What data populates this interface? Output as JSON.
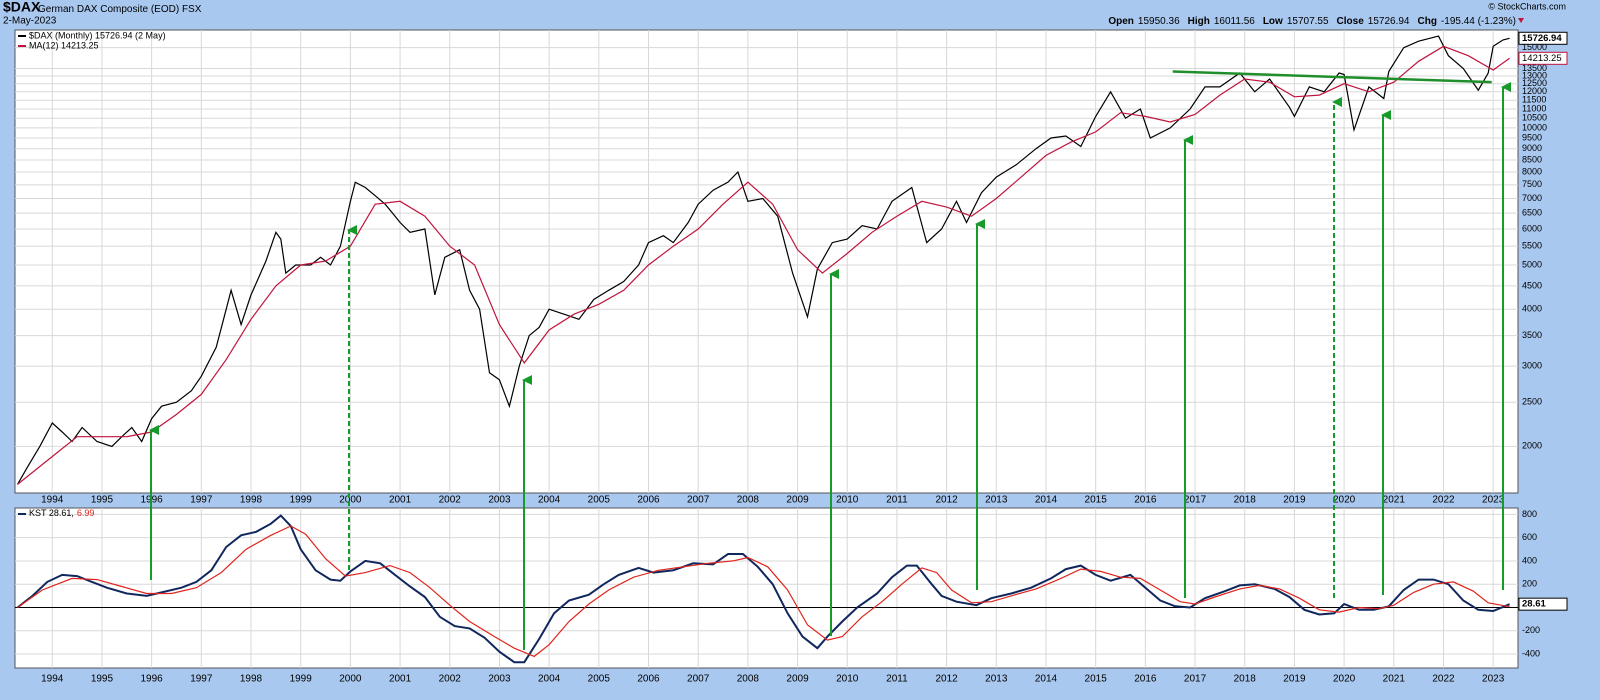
{
  "chart_data": [
    {
      "type": "line",
      "title": "$DAX",
      "subtitle": "German DAX Composite (EOD)",
      "exchange": "FSX",
      "date": "2-May-2023",
      "credit": "© StockCharts.com",
      "quote": [
        {
          "label": "Open",
          "value": 15950.36
        },
        {
          "label": "High",
          "value": 16011.56
        },
        {
          "label": "Low",
          "value": 15707.55
        },
        {
          "label": "Close",
          "value": 15726.94
        },
        {
          "label": "Chg",
          "value": "-195.44 (-1.23%)"
        }
      ],
      "log_scale": true,
      "grid": true,
      "xlim": [
        1993.25,
        2023.5
      ],
      "xticks": [
        1994,
        1995,
        1996,
        1997,
        1998,
        1999,
        2000,
        2001,
        2002,
        2003,
        2004,
        2005,
        2006,
        2007,
        2008,
        2009,
        2010,
        2011,
        2012,
        2013,
        2014,
        2015,
        2016,
        2017,
        2018,
        2019,
        2020,
        2021,
        2022,
        2023
      ],
      "ylim": [
        1580,
        16400
      ],
      "yticks": [
        2000,
        2500,
        3000,
        3500,
        4000,
        4500,
        5000,
        5500,
        6000,
        6500,
        7000,
        7500,
        8000,
        8500,
        9000,
        9500,
        10000,
        10500,
        11000,
        11500,
        12000,
        12500,
        13000,
        13500,
        15000
      ],
      "series": [
        {
          "name": "$DAX (Monthly) 15726.94 (2 May)",
          "color": "#000000",
          "x": [
            1993.3,
            1993.5,
            1993.75,
            1994.0,
            1994.2,
            1994.4,
            1994.6,
            1994.9,
            1995.2,
            1995.4,
            1995.6,
            1995.8,
            1996.0,
            1996.2,
            1996.5,
            1996.8,
            1997.0,
            1997.3,
            1997.5,
            1997.6,
            1997.8,
            1998.0,
            1998.3,
            1998.5,
            1998.6,
            1998.7,
            1998.9,
            1999.0,
            1999.2,
            1999.4,
            1999.6,
            1999.8,
            2000.0,
            2000.1,
            2000.3,
            2000.5,
            2000.7,
            2000.9,
            2001.0,
            2001.2,
            2001.5,
            2001.7,
            2001.9,
            2002.2,
            2002.4,
            2002.6,
            2002.8,
            2003.0,
            2003.2,
            2003.4,
            2003.6,
            2003.8,
            2004.0,
            2004.3,
            2004.6,
            2004.9,
            2005.2,
            2005.5,
            2005.8,
            2006.0,
            2006.3,
            2006.5,
            2006.8,
            2007.0,
            2007.3,
            2007.6,
            2007.8,
            2008.0,
            2008.3,
            2008.6,
            2008.9,
            2009.2,
            2009.4,
            2009.7,
            2010.0,
            2010.3,
            2010.6,
            2010.9,
            2011.3,
            2011.6,
            2011.9,
            2012.2,
            2012.4,
            2012.7,
            2013.0,
            2013.4,
            2013.8,
            2014.1,
            2014.4,
            2014.7,
            2015.0,
            2015.3,
            2015.6,
            2015.9,
            2016.1,
            2016.5,
            2016.9,
            2017.2,
            2017.5,
            2017.9,
            2018.2,
            2018.5,
            2018.9,
            2019.0,
            2019.3,
            2019.6,
            2019.9,
            2020.0,
            2020.2,
            2020.5,
            2020.8,
            2020.9,
            2021.2,
            2021.5,
            2021.9,
            2022.1,
            2022.4,
            2022.7,
            2022.9,
            2023.0,
            2023.2,
            2023.33
          ],
          "values": [
            1650,
            1800,
            2000,
            2250,
            2150,
            2050,
            2200,
            2050,
            2000,
            2100,
            2200,
            2050,
            2300,
            2450,
            2500,
            2650,
            2850,
            3300,
            4000,
            4400,
            3700,
            4300,
            5100,
            5900,
            5700,
            4800,
            5000,
            5000,
            5000,
            5200,
            5000,
            5500,
            6900,
            7600,
            7400,
            7100,
            6800,
            6400,
            6200,
            5900,
            6000,
            4300,
            5200,
            5400,
            4400,
            4000,
            2900,
            2800,
            2450,
            3000,
            3500,
            3650,
            4000,
            3900,
            3800,
            4200,
            4400,
            4600,
            5000,
            5600,
            5800,
            5600,
            6200,
            6800,
            7300,
            7600,
            8000,
            6900,
            7000,
            6400,
            4800,
            3850,
            4900,
            5600,
            5700,
            6100,
            6000,
            6900,
            7400,
            5600,
            6000,
            6900,
            6200,
            7200,
            7800,
            8300,
            9000,
            9500,
            9600,
            9100,
            10600,
            12000,
            10500,
            11000,
            9500,
            10000,
            11000,
            12300,
            12300,
            13200,
            12000,
            12800,
            11100,
            10600,
            12300,
            12000,
            13200,
            13100,
            9900,
            12300,
            11600,
            13300,
            15000,
            15500,
            15900,
            14400,
            13500,
            12100,
            13200,
            15100,
            15600,
            15726.94
          ]
        },
        {
          "name": "MA(12) 14213.25",
          "color": "#c0143c",
          "x": [
            1993.3,
            1994.0,
            1994.5,
            1995.0,
            1995.5,
            1996.0,
            1996.5,
            1997.0,
            1997.5,
            1998.0,
            1998.5,
            1999.0,
            1999.5,
            2000.0,
            2000.5,
            2001.0,
            2001.5,
            2002.0,
            2002.5,
            2003.0,
            2003.5,
            2004.0,
            2004.5,
            2005.0,
            2005.5,
            2006.0,
            2006.5,
            2007.0,
            2007.5,
            2008.0,
            2008.5,
            2009.0,
            2009.5,
            2010.0,
            2010.5,
            2011.0,
            2011.5,
            2012.0,
            2012.5,
            2013.0,
            2013.5,
            2014.0,
            2014.5,
            2015.0,
            2015.5,
            2016.0,
            2016.5,
            2017.0,
            2017.5,
            2018.0,
            2018.5,
            2019.0,
            2019.5,
            2020.0,
            2020.5,
            2021.0,
            2021.5,
            2022.0,
            2022.5,
            2023.0,
            2023.33
          ],
          "values": [
            1650,
            1900,
            2100,
            2100,
            2100,
            2150,
            2350,
            2600,
            3100,
            3800,
            4500,
            5000,
            5100,
            5500,
            6800,
            6900,
            6400,
            5500,
            5000,
            3700,
            3050,
            3600,
            3900,
            4100,
            4400,
            5000,
            5500,
            6000,
            6800,
            7600,
            6800,
            5400,
            4800,
            5300,
            5900,
            6400,
            6900,
            6700,
            6400,
            7000,
            7800,
            8700,
            9300,
            9800,
            10800,
            10600,
            10300,
            10700,
            11800,
            12800,
            12600,
            11700,
            11800,
            12500,
            12000,
            12600,
            14000,
            15100,
            14400,
            13400,
            14213.25
          ]
        }
      ],
      "trendline": {
        "color": "#1f8f2c",
        "x": [
          2016.55,
          2022.97
        ],
        "values": [
          13300,
          12600
        ]
      }
    },
    {
      "type": "line",
      "grid": true,
      "zero_line": true,
      "xlim": [
        1993.25,
        2023.5
      ],
      "xticks": [
        1994,
        1995,
        1996,
        1997,
        1998,
        1999,
        2000,
        2001,
        2002,
        2003,
        2004,
        2005,
        2006,
        2007,
        2008,
        2009,
        2010,
        2011,
        2012,
        2013,
        2014,
        2015,
        2016,
        2017,
        2018,
        2019,
        2020,
        2021,
        2022,
        2023
      ],
      "ylim": [
        -520,
        855
      ],
      "yticks": [
        -400,
        -200,
        200,
        400,
        600,
        800
      ],
      "series": [
        {
          "name": "KST 28.61,",
          "color": "#10275e",
          "x": [
            1993.3,
            1993.6,
            1993.9,
            1994.2,
            1994.5,
            1994.8,
            1995.1,
            1995.5,
            1995.9,
            1996.2,
            1996.6,
            1996.9,
            1997.2,
            1997.5,
            1997.8,
            1998.1,
            1998.4,
            1998.6,
            1998.8,
            1999.0,
            1999.3,
            1999.6,
            1999.8,
            2000.0,
            2000.3,
            2000.6,
            2000.9,
            2001.2,
            2001.5,
            2001.8,
            2002.1,
            2002.4,
            2002.7,
            2003.0,
            2003.3,
            2003.5,
            2003.8,
            2004.1,
            2004.4,
            2004.8,
            2005.1,
            2005.4,
            2005.8,
            2006.1,
            2006.5,
            2006.9,
            2007.3,
            2007.6,
            2007.9,
            2008.2,
            2008.5,
            2008.8,
            2009.1,
            2009.4,
            2009.6,
            2009.9,
            2010.2,
            2010.6,
            2010.9,
            2011.2,
            2011.4,
            2011.7,
            2011.9,
            2012.2,
            2012.6,
            2012.9,
            2013.3,
            2013.7,
            2014.1,
            2014.4,
            2014.7,
            2015.0,
            2015.3,
            2015.7,
            2016.0,
            2016.3,
            2016.6,
            2016.9,
            2017.2,
            2017.6,
            2017.9,
            2018.2,
            2018.6,
            2018.9,
            2019.2,
            2019.5,
            2019.8,
            2020.0,
            2020.3,
            2020.6,
            2020.9,
            2021.2,
            2021.5,
            2021.8,
            2022.1,
            2022.4,
            2022.7,
            2023.0,
            2023.33
          ],
          "values": [
            0,
            100,
            220,
            280,
            270,
            220,
            170,
            120,
            100,
            130,
            170,
            220,
            320,
            520,
            620,
            650,
            720,
            790,
            700,
            500,
            320,
            240,
            230,
            310,
            400,
            380,
            280,
            180,
            90,
            -80,
            -160,
            -180,
            -260,
            -380,
            -470,
            -470,
            -270,
            -50,
            60,
            110,
            200,
            280,
            340,
            300,
            320,
            380,
            370,
            460,
            460,
            350,
            200,
            -50,
            -250,
            -350,
            -250,
            -120,
            0,
            120,
            260,
            360,
            360,
            200,
            100,
            50,
            20,
            80,
            120,
            170,
            250,
            330,
            360,
            280,
            230,
            280,
            170,
            60,
            10,
            0,
            80,
            140,
            190,
            200,
            160,
            90,
            -20,
            -60,
            -50,
            30,
            -20,
            -20,
            10,
            150,
            240,
            240,
            200,
            60,
            -20,
            -30,
            28.61
          ]
        },
        {
          "name": "6.99",
          "color": "#e0241c",
          "x": [
            1993.3,
            1993.8,
            1994.4,
            1994.9,
            1995.4,
            1995.9,
            1996.4,
            1996.9,
            1997.4,
            1997.9,
            1998.4,
            1998.8,
            1999.1,
            1999.5,
            1999.9,
            2000.3,
            2000.8,
            2001.2,
            2001.6,
            2002.0,
            2002.4,
            2002.9,
            2003.3,
            2003.7,
            2004.0,
            2004.4,
            2004.8,
            2005.2,
            2005.7,
            2006.2,
            2006.7,
            2007.2,
            2007.7,
            2008.0,
            2008.4,
            2008.8,
            2009.2,
            2009.6,
            2009.9,
            2010.3,
            2010.7,
            2011.1,
            2011.5,
            2011.8,
            2012.1,
            2012.5,
            2012.9,
            2013.3,
            2013.8,
            2014.3,
            2014.7,
            2015.1,
            2015.5,
            2015.9,
            2016.3,
            2016.7,
            2017.0,
            2017.4,
            2017.9,
            2018.3,
            2018.7,
            2019.1,
            2019.5,
            2019.9,
            2020.3,
            2020.7,
            2021.0,
            2021.4,
            2021.8,
            2022.2,
            2022.6,
            2022.9,
            2023.33
          ],
          "values": [
            0,
            150,
            250,
            240,
            180,
            120,
            120,
            170,
            300,
            500,
            620,
            700,
            630,
            420,
            270,
            300,
            360,
            300,
            170,
            20,
            -120,
            -250,
            -350,
            -420,
            -320,
            -120,
            30,
            150,
            260,
            320,
            350,
            380,
            400,
            430,
            350,
            150,
            -150,
            -280,
            -250,
            -80,
            50,
            200,
            340,
            300,
            150,
            40,
            50,
            100,
            160,
            250,
            330,
            310,
            260,
            250,
            150,
            50,
            30,
            90,
            160,
            190,
            160,
            80,
            -20,
            -40,
            0,
            -10,
            20,
            130,
            200,
            220,
            140,
            40,
            6.99
          ]
        }
      ]
    }
  ]
}
